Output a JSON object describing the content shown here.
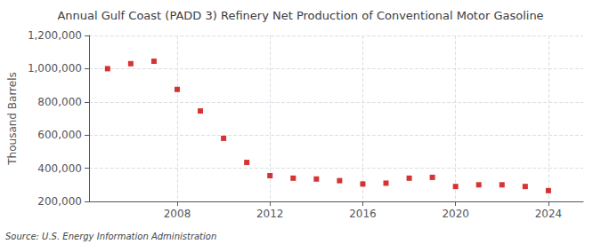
{
  "chart_data": {
    "type": "scatter",
    "title": "Annual Gulf Coast (PADD 3) Refinery Net Production of Conventional Motor Gasoline",
    "ylabel": "Thousand Barrels",
    "source": "Source: U.S. Energy Information Administration",
    "x": [
      2005,
      2006,
      2007,
      2008,
      2009,
      2010,
      2011,
      2012,
      2013,
      2014,
      2015,
      2016,
      2017,
      2018,
      2019,
      2020,
      2021,
      2022,
      2023,
      2024
    ],
    "values": [
      1000000,
      1030000,
      1045000,
      875000,
      745000,
      580000,
      435000,
      355000,
      340000,
      335000,
      325000,
      305000,
      310000,
      340000,
      345000,
      290000,
      300000,
      300000,
      290000,
      265000
    ],
    "color": "#cc0000",
    "marker": "square",
    "xlim": [
      2004.2,
      2025.5
    ],
    "xticks": [
      2008,
      2012,
      2016,
      2020,
      2024
    ],
    "ylim": [
      200000,
      1200000
    ],
    "yticks": [
      {
        "value": 200000,
        "label": "200,000"
      },
      {
        "value": 400000,
        "label": "400,000"
      },
      {
        "value": 600000,
        "label": "600,000"
      },
      {
        "value": 800000,
        "label": "800,000"
      },
      {
        "value": 1000000,
        "label": "1,000,000"
      },
      {
        "value": 1200000,
        "label": "1,200,000"
      }
    ],
    "grid": true
  }
}
